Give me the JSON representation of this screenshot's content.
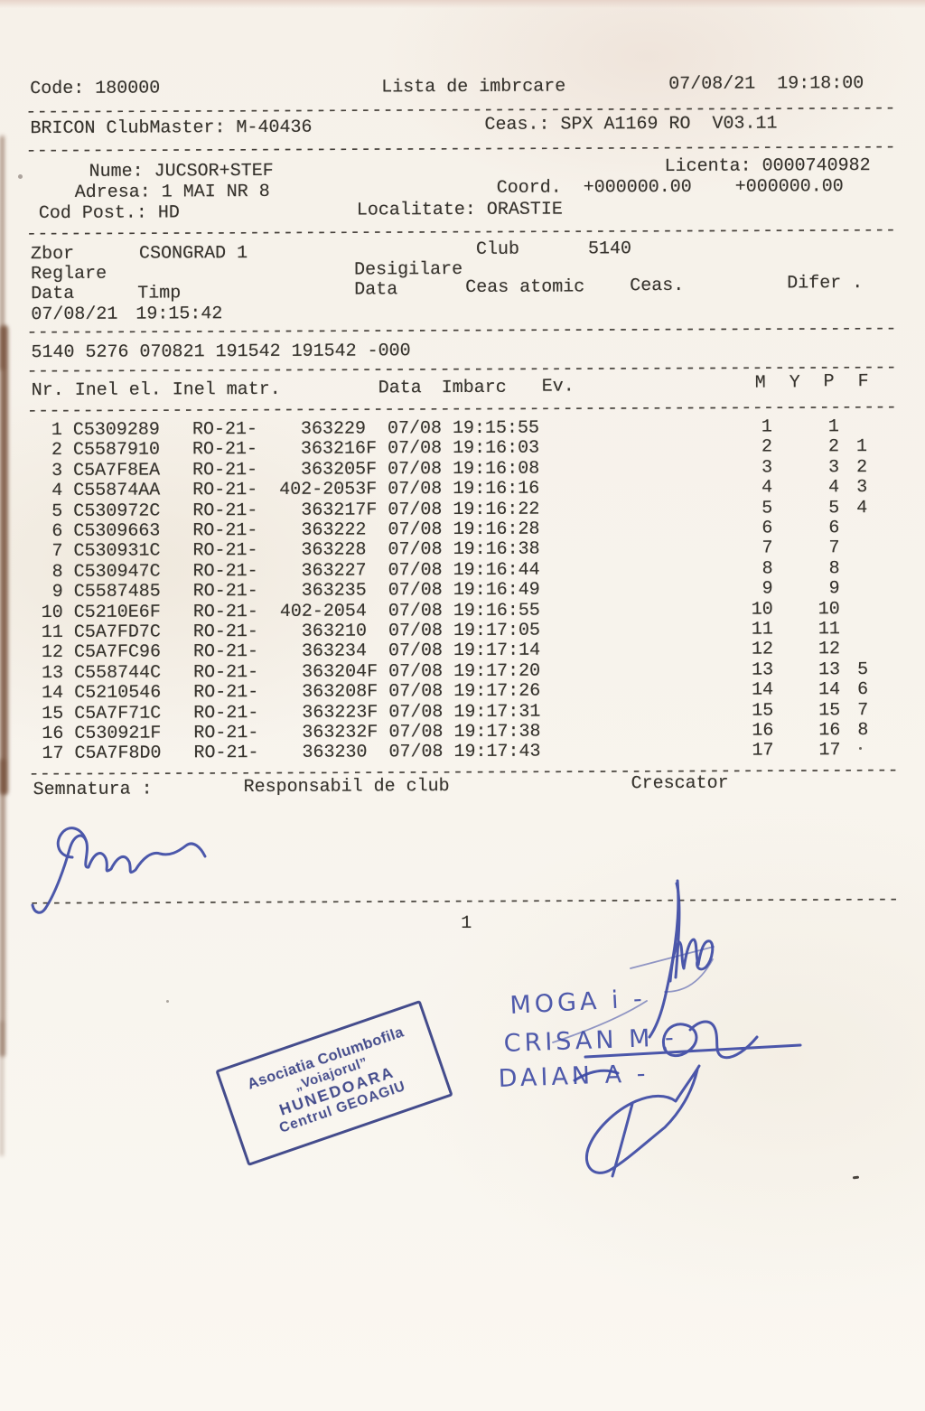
{
  "doc": {
    "code": "Code: 180000",
    "title": "Lista de imbrcare",
    "printed_at": "07/08/21  19:18:00",
    "device": "BRICON ClubMaster: M-40436",
    "clock": "Ceas.: SPX A1169 RO  V03.11",
    "nume": "Nume: JUCSOR+STEF",
    "licenta": "Licenta: 0000740982",
    "adresa": "Adresa: 1 MAI NR 8",
    "coord": "Coord.  +000000.00    +000000.00",
    "cod_post": "Cod Post.: HD",
    "localitate": "Localitate: ORASTIE"
  },
  "flight": {
    "zbor_label": "Zbor",
    "zbor_name": "CSONGRAD 1",
    "club_label": "Club",
    "club_code": "5140",
    "reglare_label": "Reglare",
    "desigilare_label": "Desigilare",
    "data_label": "Data",
    "timp_label": "Timp",
    "data2_label": "Data",
    "ceas_atomic_label": "Ceas atomic",
    "ceas_label": "Ceas.",
    "difer_label": "Difer .",
    "reglare_data": "07/08/21",
    "reglare_timp": "19:15:42",
    "seal_line": "5140 5276 070821 191542 191542 -000"
  },
  "table": {
    "header_left": "Nr. Inel el. Inel matr.",
    "header_data": "Data",
    "header_imbarc": "Imbarc",
    "header_ev": "Ev.",
    "header_m": "M",
    "header_y": "Y",
    "header_p": "P",
    "header_f": "F",
    "ring_prefix": "RO-21-",
    "rows": [
      {
        "nr": "1",
        "inel_el": "C5309289",
        "inel_matr": "363229",
        "data": "07/08",
        "imbarc": "19:15:55",
        "m": "1",
        "y": "",
        "p": "1",
        "f": ""
      },
      {
        "nr": "2",
        "inel_el": "C5587910",
        "inel_matr": "363216F",
        "data": "07/08",
        "imbarc": "19:16:03",
        "m": "2",
        "y": "",
        "p": "2",
        "f": "1"
      },
      {
        "nr": "3",
        "inel_el": "C5A7F8EA",
        "inel_matr": "363205F",
        "data": "07/08",
        "imbarc": "19:16:08",
        "m": "3",
        "y": "",
        "p": "3",
        "f": "2"
      },
      {
        "nr": "4",
        "inel_el": "C55874AA",
        "inel_matr": "402-2053F",
        "data": "07/08",
        "imbarc": "19:16:16",
        "m": "4",
        "y": "",
        "p": "4",
        "f": "3"
      },
      {
        "nr": "5",
        "inel_el": "C530972C",
        "inel_matr": "363217F",
        "data": "07/08",
        "imbarc": "19:16:22",
        "m": "5",
        "y": "",
        "p": "5",
        "f": "4"
      },
      {
        "nr": "6",
        "inel_el": "C5309663",
        "inel_matr": "363222",
        "data": "07/08",
        "imbarc": "19:16:28",
        "m": "6",
        "y": "",
        "p": "6",
        "f": ""
      },
      {
        "nr": "7",
        "inel_el": "C530931C",
        "inel_matr": "363228",
        "data": "07/08",
        "imbarc": "19:16:38",
        "m": "7",
        "y": "",
        "p": "7",
        "f": ""
      },
      {
        "nr": "8",
        "inel_el": "C530947C",
        "inel_matr": "363227",
        "data": "07/08",
        "imbarc": "19:16:44",
        "m": "8",
        "y": "",
        "p": "8",
        "f": ""
      },
      {
        "nr": "9",
        "inel_el": "C5587485",
        "inel_matr": "363235",
        "data": "07/08",
        "imbarc": "19:16:49",
        "m": "9",
        "y": "",
        "p": "9",
        "f": ""
      },
      {
        "nr": "10",
        "inel_el": "C5210E6F",
        "inel_matr": "402-2054",
        "data": "07/08",
        "imbarc": "19:16:55",
        "m": "10",
        "y": "",
        "p": "10",
        "f": ""
      },
      {
        "nr": "11",
        "inel_el": "C5A7FD7C",
        "inel_matr": "363210",
        "data": "07/08",
        "imbarc": "19:17:05",
        "m": "11",
        "y": "",
        "p": "11",
        "f": ""
      },
      {
        "nr": "12",
        "inel_el": "C5A7FC96",
        "inel_matr": "363234",
        "data": "07/08",
        "imbarc": "19:17:14",
        "m": "12",
        "y": "",
        "p": "12",
        "f": ""
      },
      {
        "nr": "13",
        "inel_el": "C558744C",
        "inel_matr": "363204F",
        "data": "07/08",
        "imbarc": "19:17:20",
        "m": "13",
        "y": "",
        "p": "13",
        "f": "5"
      },
      {
        "nr": "14",
        "inel_el": "C5210546",
        "inel_matr": "363208F",
        "data": "07/08",
        "imbarc": "19:17:26",
        "m": "14",
        "y": "",
        "p": "14",
        "f": "6"
      },
      {
        "nr": "15",
        "inel_el": "C5A7F71C",
        "inel_matr": "363223F",
        "data": "07/08",
        "imbarc": "19:17:31",
        "m": "15",
        "y": "",
        "p": "15",
        "f": "7"
      },
      {
        "nr": "16",
        "inel_el": "C530921F",
        "inel_matr": "363232F",
        "data": "07/08",
        "imbarc": "19:17:38",
        "m": "16",
        "y": "",
        "p": "16",
        "f": "8"
      },
      {
        "nr": "17",
        "inel_el": "C5A7F8D0",
        "inel_matr": "363230",
        "data": "07/08",
        "imbarc": "19:17:43",
        "m": "17",
        "y": "",
        "p": "17",
        "f": ""
      }
    ]
  },
  "footer": {
    "semnatura": "Semnatura :",
    "responsabil": "Responsabil de club",
    "crescator": "Crescator",
    "page_number": "1"
  },
  "handwriting": {
    "names": [
      "MOGA i -",
      "CRISAN M -",
      "DAIAN A -"
    ],
    "ink_color": "#3d4aa5"
  },
  "stamp": {
    "line1": "Asociatia Columbofila",
    "line2": "„Voiajorul”",
    "line3": "HUNEDOARA",
    "line4": "Centrul GEOAGIU",
    "color": "#2c357f"
  },
  "separator": {
    "dashes": "------------------------------------------------------------------------------"
  }
}
